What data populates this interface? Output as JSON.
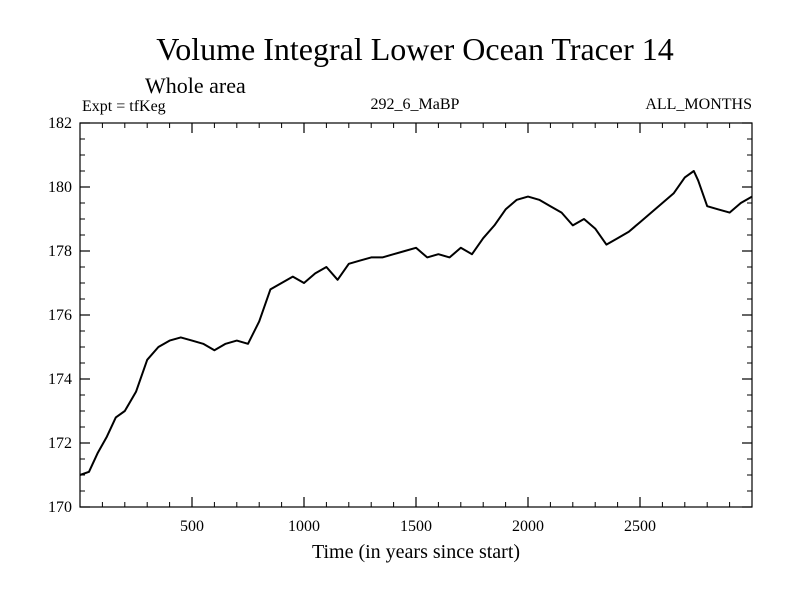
{
  "chart_data": {
    "type": "line",
    "title": "Volume Integral Lower Ocean Tracer 14",
    "subtitle": "Whole area",
    "left_label": "Expt = tfKeg",
    "center_label": "292_6_MaBP",
    "right_label": "ALL_MONTHS",
    "xlabel": "Time (in years since start)",
    "ylabel": "",
    "xlim": [
      0,
      3000
    ],
    "ylim": [
      170,
      182
    ],
    "xticks": [
      500,
      1000,
      1500,
      2000,
      2500
    ],
    "xtick_labels": [
      "500",
      "1000",
      "1500",
      "2000",
      "2500"
    ],
    "yticks": [
      170,
      172,
      174,
      176,
      178,
      180,
      182
    ],
    "ytick_labels": [
      "170",
      "172",
      "174",
      "176",
      "178",
      "180",
      "182"
    ],
    "grid": false,
    "line_color": "#000000",
    "series": [
      {
        "x": [
          0,
          40,
          80,
          120,
          160,
          200,
          250,
          300,
          350,
          400,
          450,
          500,
          550,
          600,
          650,
          700,
          750,
          800,
          850,
          900,
          950,
          1000,
          1050,
          1100,
          1150,
          1200,
          1250,
          1300,
          1350,
          1400,
          1450,
          1500,
          1550,
          1600,
          1650,
          1700,
          1750,
          1800,
          1850,
          1900,
          1950,
          2000,
          2050,
          2100,
          2150,
          2200,
          2250,
          2300,
          2350,
          2400,
          2450,
          2500,
          2550,
          2600,
          2650,
          2700,
          2740,
          2760,
          2800,
          2850,
          2900,
          2950,
          3000
        ],
        "values": [
          171.0,
          171.1,
          171.7,
          172.2,
          172.8,
          173.0,
          173.6,
          174.6,
          175.0,
          175.2,
          175.3,
          175.2,
          175.1,
          174.9,
          175.1,
          175.2,
          175.1,
          175.8,
          176.8,
          177.0,
          177.2,
          177.0,
          177.3,
          177.5,
          177.1,
          177.6,
          177.7,
          177.8,
          177.8,
          177.9,
          178.0,
          178.1,
          177.8,
          177.9,
          177.8,
          178.1,
          177.9,
          178.4,
          178.8,
          179.3,
          179.6,
          179.7,
          179.6,
          179.4,
          179.2,
          178.8,
          179.0,
          178.7,
          178.2,
          178.4,
          178.6,
          178.9,
          179.2,
          179.5,
          179.8,
          180.3,
          180.5,
          180.2,
          179.4,
          179.3,
          179.2,
          179.5,
          179.7
        ]
      }
    ]
  }
}
